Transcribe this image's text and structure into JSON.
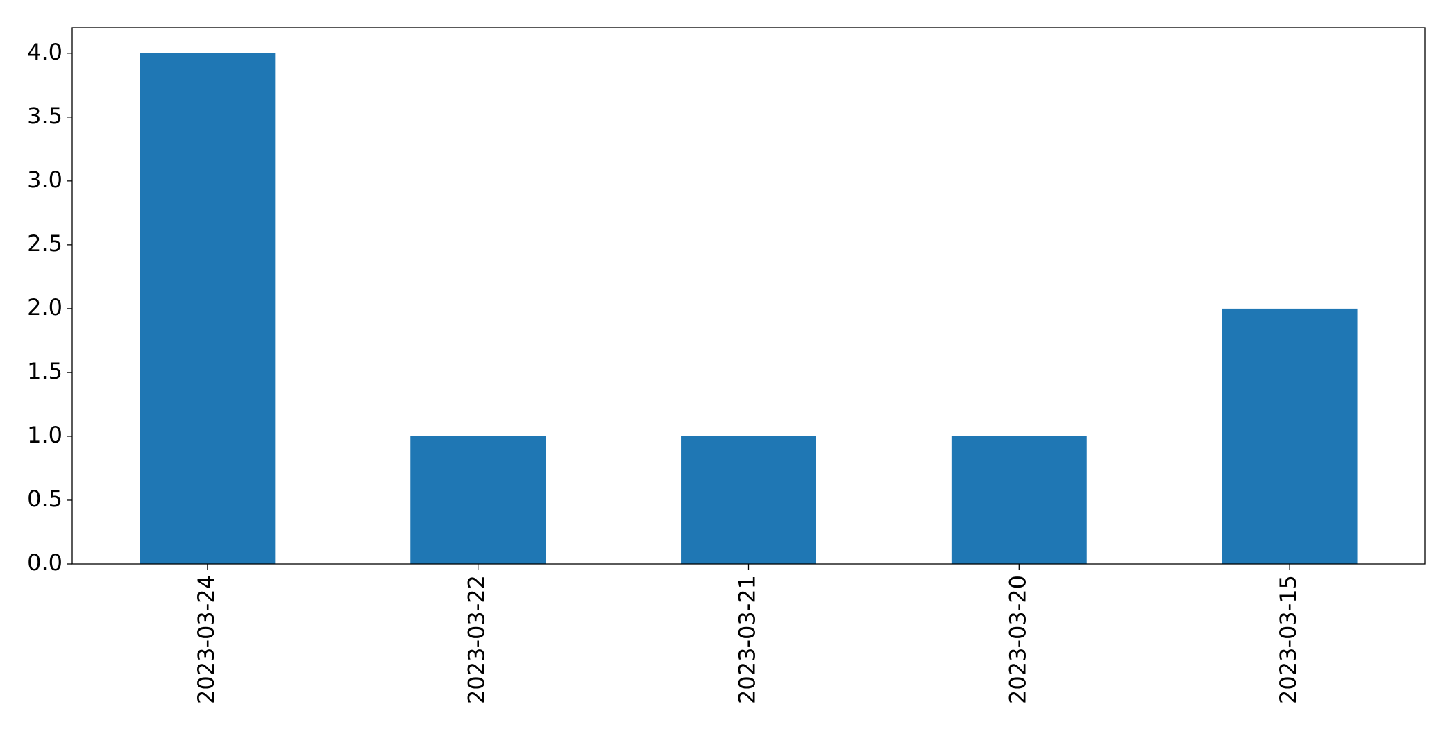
{
  "chart_data": {
    "type": "bar",
    "categories": [
      "2023-03-24",
      "2023-03-22",
      "2023-03-21",
      "2023-03-20",
      "2023-03-15"
    ],
    "values": [
      4,
      1,
      1,
      1,
      2
    ],
    "color": "#1f77b4",
    "ylim": [
      0,
      4.2
    ],
    "yticks": [
      {
        "value": 0,
        "label": "0.0"
      },
      0.5,
      {
        "value": 1,
        "label": "1.0"
      },
      1.5,
      {
        "value": 2,
        "label": "2.0"
      },
      2.5,
      {
        "value": 3,
        "label": "3.0"
      },
      3.5,
      {
        "value": 4,
        "label": "4.0"
      }
    ],
    "grid": false
  }
}
